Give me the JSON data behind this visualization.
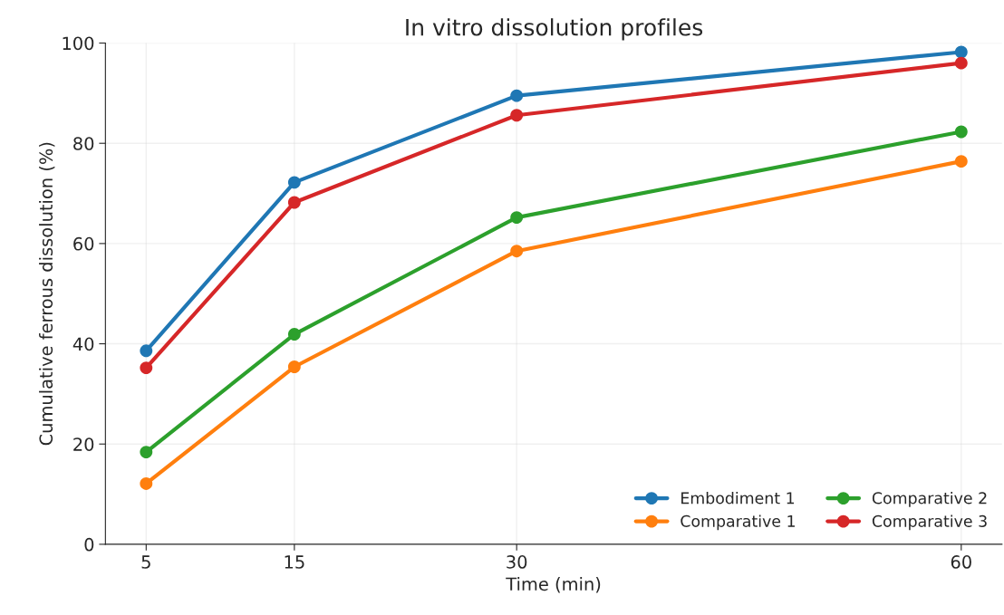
{
  "chart_data": {
    "type": "line",
    "title": "In vitro dissolution profiles",
    "xlabel": "Time (min)",
    "ylabel": "Cumulative ferrous dissolution (%)",
    "x": [
      5,
      15,
      30,
      60
    ],
    "xlim": [
      2.25,
      62.75
    ],
    "xticks": [
      5,
      15,
      30,
      60
    ],
    "ylim": [
      0,
      100
    ],
    "yticks": [
      0,
      20,
      40,
      60,
      80,
      100
    ],
    "grid": true,
    "legend": "bottom right",
    "marker": "circle",
    "line_style": "solid",
    "series": [
      {
        "name": "Embodiment 1",
        "color": "#1f77b4",
        "values": [
          38.6,
          72.2,
          89.5,
          98.2
        ]
      },
      {
        "name": "Comparative 1",
        "color": "#ff7f0e",
        "values": [
          12.1,
          35.4,
          58.5,
          76.4
        ]
      },
      {
        "name": "Comparative 2",
        "color": "#2ca02c",
        "values": [
          18.4,
          41.9,
          65.2,
          82.3
        ]
      },
      {
        "name": "Comparative 3",
        "color": "#d62728",
        "values": [
          35.2,
          68.2,
          85.6,
          96.0
        ]
      }
    ]
  }
}
